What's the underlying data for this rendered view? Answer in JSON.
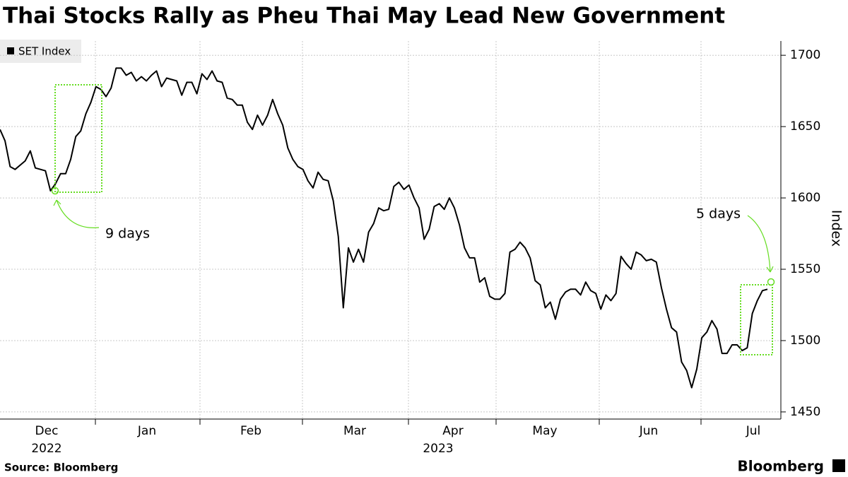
{
  "chart_data": {
    "type": "line",
    "title": "Thai Stocks Rally as Pheu Thai May Lead New Government",
    "source": "Source: Bloomberg",
    "brand": "Bloomberg",
    "y_label": "Index",
    "series": [
      {
        "name": "SET Index",
        "color": "#000000",
        "values": [
          1648,
          1640,
          1622,
          1620,
          1623,
          1626,
          1633,
          1621,
          1620,
          1619,
          1605,
          1610,
          1617,
          1617,
          1627,
          1643,
          1647,
          1659,
          1667,
          1678,
          1676,
          1671,
          1677,
          1691,
          1691,
          1686,
          1688,
          1682,
          1685,
          1682,
          1686,
          1689,
          1678,
          1684,
          1683,
          1682,
          1672,
          1681,
          1681,
          1673,
          1687,
          1683,
          1689,
          1682,
          1681,
          1670,
          1669,
          1665,
          1665,
          1653,
          1648,
          1658,
          1651,
          1658,
          1669,
          1659,
          1651,
          1635,
          1627,
          1622,
          1620,
          1612,
          1607,
          1618,
          1613,
          1612,
          1598,
          1573,
          1523,
          1565,
          1555,
          1564,
          1555,
          1576,
          1582,
          1593,
          1591,
          1592,
          1608,
          1611,
          1606,
          1609,
          1600,
          1593,
          1571,
          1578,
          1594,
          1596,
          1592,
          1600,
          1593,
          1581,
          1565,
          1558,
          1558,
          1541,
          1544,
          1531,
          1529,
          1529,
          1533,
          1562,
          1564,
          1569,
          1565,
          1558,
          1542,
          1539,
          1523,
          1527,
          1515,
          1529,
          1534,
          1536,
          1536,
          1532,
          1541,
          1535,
          1533,
          1522,
          1532,
          1528,
          1533,
          1559,
          1554,
          1550,
          1562,
          1560,
          1556,
          1557,
          1555,
          1537,
          1522,
          1509,
          1506,
          1485,
          1479,
          1467,
          1480,
          1502,
          1506,
          1514,
          1508,
          1491,
          1491,
          1497,
          1497,
          1493,
          1495,
          1519,
          1528,
          1535,
          1536
        ]
      }
    ],
    "xtick_labels": [
      "Dec",
      "Jan",
      "Feb",
      "Mar",
      "Apr",
      "May",
      "Jun",
      "Jul"
    ],
    "year_labels": [
      "2022",
      "2023"
    ],
    "ylim": [
      1445,
      1710
    ],
    "yticks": [
      1450,
      1500,
      1550,
      1600,
      1650,
      1700
    ],
    "grid": true,
    "annotations": [
      "9 days",
      "5 days"
    ],
    "annotation_color": "#66dd22"
  }
}
